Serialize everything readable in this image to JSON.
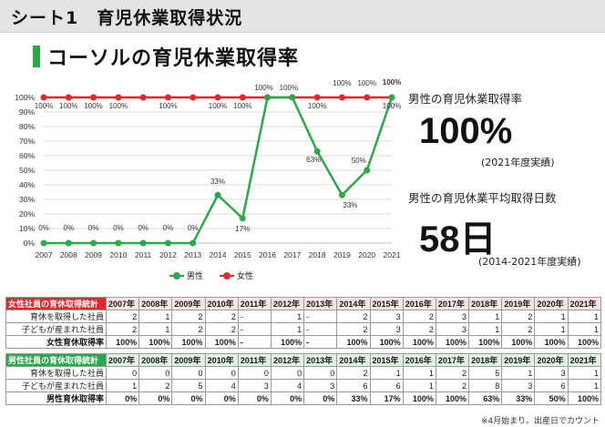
{
  "header": {
    "title": "シート1　育児休業取得状況"
  },
  "section": {
    "title": "コーソルの育児休業取得率"
  },
  "chart_data": {
    "type": "line",
    "x": [
      "2007",
      "2008",
      "2009",
      "2010",
      "2011",
      "2012",
      "2013",
      "2014",
      "2015",
      "2016",
      "2017",
      "2018",
      "2019",
      "2020",
      "2021"
    ],
    "ylim": [
      0,
      100
    ],
    "yticks": [
      "0%",
      "10%",
      "20%",
      "30%",
      "40%",
      "50%",
      "60%",
      "70%",
      "80%",
      "90%",
      "100%"
    ],
    "grid": true,
    "legend_position": "bottom",
    "series": [
      {
        "name": "男性",
        "color": "#2ca84a",
        "values": [
          0,
          0,
          0,
          0,
          0,
          0,
          0,
          33,
          17,
          100,
          100,
          63,
          33,
          50,
          100
        ],
        "labels": [
          "0%",
          "0%",
          "0%",
          "0%",
          "0%",
          "0%",
          "0%",
          "33%",
          "17%",
          "100%",
          "100%",
          "63%",
          "33%",
          "50%",
          "100%"
        ]
      },
      {
        "name": "女性",
        "color": "#e8262a",
        "values": [
          100,
          100,
          100,
          100,
          100,
          100,
          100,
          100,
          100,
          100,
          100,
          100,
          100,
          100,
          100
        ],
        "labels": [
          "100%",
          "100%",
          "100%",
          "100%",
          "",
          "100%",
          "",
          "100%",
          "100%",
          "",
          "",
          "100%",
          "100%",
          "100%",
          "100%"
        ]
      }
    ]
  },
  "kpi": {
    "rate_label": "男性の育児休業取得率",
    "rate_value": "100%",
    "rate_note": "(2021年度実績)",
    "days_label": "男性の育児休業平均取得日数",
    "days_value": "58日",
    "days_note": "(2014-2021年度実績)"
  },
  "female_table": {
    "title": "女性社員の育休取得統計",
    "years": [
      "2007年",
      "2008年",
      "2009年",
      "2010年",
      "2011年",
      "2012年",
      "2013年",
      "2014年",
      "2015年",
      "2016年",
      "2017年",
      "2018年",
      "2019年",
      "2020年",
      "2021年"
    ],
    "rows": [
      {
        "label": "育休を取得した社員",
        "values": [
          "2",
          "1",
          "2",
          "2",
          "-",
          "1",
          "-",
          "2",
          "3",
          "2",
          "3",
          "1",
          "2",
          "1",
          "1"
        ]
      },
      {
        "label": "子どもが産まれた社員",
        "values": [
          "2",
          "1",
          "2",
          "2",
          "-",
          "1",
          "-",
          "2",
          "3",
          "2",
          "3",
          "1",
          "2",
          "1",
          "1"
        ]
      },
      {
        "label": "女性育休取得率",
        "values": [
          "100%",
          "100%",
          "100%",
          "100%",
          "-",
          "100%",
          "-",
          "100%",
          "100%",
          "100%",
          "100%",
          "100%",
          "100%",
          "100%",
          "100%"
        ]
      }
    ]
  },
  "male_table": {
    "title": "男性社員の育休取得統計",
    "years": [
      "2007年",
      "2008年",
      "2009年",
      "2010年",
      "2011年",
      "2012年",
      "2013年",
      "2014年",
      "2015年",
      "2016年",
      "2017年",
      "2018年",
      "2019年",
      "2020年",
      "2021年"
    ],
    "rows": [
      {
        "label": "育休を取得した社員",
        "values": [
          "0",
          "0",
          "0",
          "0",
          "0",
          "0",
          "0",
          "2",
          "1",
          "1",
          "2",
          "5",
          "1",
          "3",
          "1"
        ]
      },
      {
        "label": "子どもが産まれた社員",
        "values": [
          "1",
          "2",
          "5",
          "4",
          "3",
          "4",
          "3",
          "6",
          "6",
          "1",
          "2",
          "8",
          "3",
          "6",
          "1"
        ]
      },
      {
        "label": "男性育休取得率",
        "values": [
          "0%",
          "0%",
          "0%",
          "0%",
          "0%",
          "0%",
          "0%",
          "33%",
          "17%",
          "100%",
          "100%",
          "63%",
          "33%",
          "50%",
          "100%"
        ]
      }
    ]
  },
  "footnote": "※4月始まり。出産日でカウント"
}
